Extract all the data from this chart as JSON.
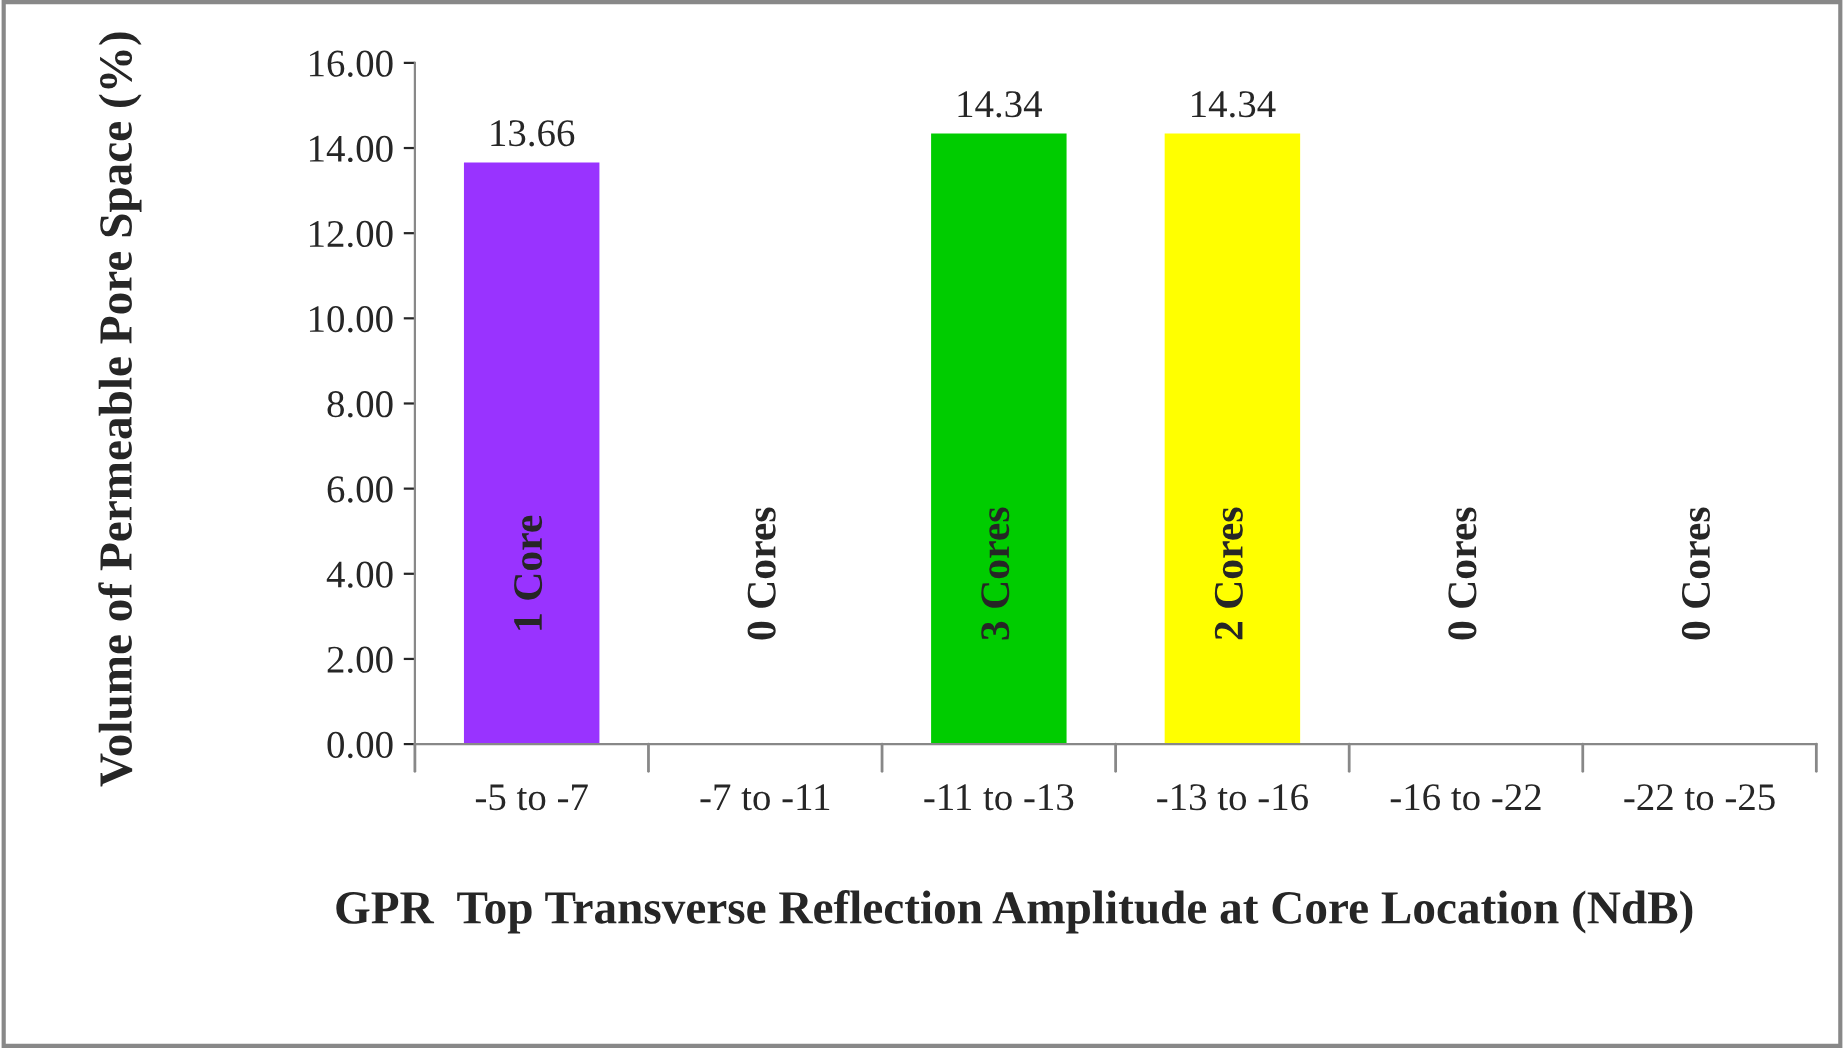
{
  "chart_data": {
    "type": "bar",
    "categories": [
      "-5 to -7",
      "-7 to -11",
      "-11 to -13",
      "-13 to -16",
      "-16 to -22",
      "-22 to -25"
    ],
    "values": [
      13.66,
      0,
      14.34,
      14.34,
      0,
      0
    ],
    "colors": [
      "#9933ff",
      "#ffffff",
      "#00cc00",
      "#ffff00",
      "#ffffff",
      "#ffffff"
    ],
    "value_labels": [
      "13.66",
      null,
      "14.34",
      "14.34",
      null,
      null
    ],
    "xlabel": "GPR  Top Transverse Reflection Amplitude at Core Location (NdB)",
    "ylabel": "Volume of Permeable Pore Space (%)",
    "ylim": [
      0,
      16
    ],
    "yticks": [
      {
        "value": 0,
        "label": "0.00"
      },
      {
        "value": 2,
        "label": "2.00"
      },
      {
        "value": 4,
        "label": "4.00"
      },
      {
        "value": 6,
        "label": "6.00"
      },
      {
        "value": 8,
        "label": "8.00"
      },
      {
        "value": 10,
        "label": "10.00"
      },
      {
        "value": 12,
        "label": "12.00"
      },
      {
        "value": 14,
        "label": "14.00"
      },
      {
        "value": 16,
        "label": "16.00"
      }
    ],
    "annotations": [
      "1 Core",
      "0 Cores",
      "3 Cores",
      "2 Cores",
      "0 Cores",
      "0 Cores"
    ],
    "grid": false,
    "legend": false
  }
}
